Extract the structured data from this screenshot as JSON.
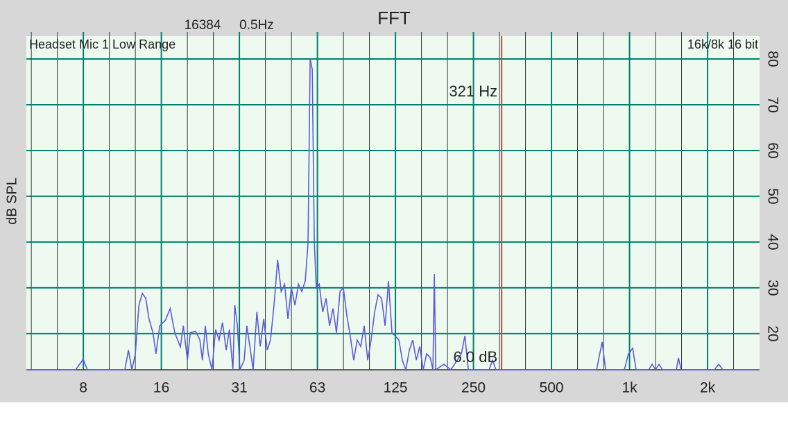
{
  "chart_data": {
    "type": "line",
    "title": "FFT",
    "subtitle_fft_size": "16384",
    "subtitle_resolution": "0.5Hz",
    "source_label": "Headset Mic 1 Low Range",
    "format_label": "16k/8k 16 bit",
    "y_label": "dB SPL",
    "x_scale": "log",
    "xlim": [
      4.71,
      3174
    ],
    "xticks": [
      {
        "value": 7.8125,
        "label": "8"
      },
      {
        "value": 15.625,
        "label": "16"
      },
      {
        "value": 31.25,
        "label": "31"
      },
      {
        "value": 62.5,
        "label": "63"
      },
      125,
      250,
      500,
      {
        "value": 1000,
        "label": "1k"
      },
      {
        "value": 2000,
        "label": "2k"
      }
    ],
    "xminor": 3,
    "ylim": [
      12.1,
      85
    ],
    "yticks": [
      20,
      30,
      40,
      50,
      60,
      70,
      80
    ],
    "grid": true,
    "color": "#5a5ae0",
    "cursor": {
      "x": 321,
      "color": "#d04040",
      "freq_label": "321 Hz",
      "level_label": "6.0 dB",
      "label_color": "#6a6af0"
    },
    "x": [
      4.71,
      7.3,
      7.6,
      7.8,
      8.1,
      11.3,
      11.66,
      12.03,
      12.4,
      12.8,
      13.2,
      13.6,
      14.0,
      14.5,
      14.9,
      15.4,
      16.2,
      16.9,
      17.6,
      18.5,
      19.0,
      19.7,
      20.2,
      21.2,
      22.0,
      22.5,
      23.1,
      23.7,
      24.5,
      25.3,
      26.1,
      26.9,
      27.8,
      28.6,
      29.5,
      30.0,
      30.7,
      31.4,
      32.6,
      33.4,
      34.3,
      35.3,
      36.5,
      37.6,
      38.8,
      40.0,
      41.2,
      42.5,
      43.9,
      45.3,
      46.7,
      48.1,
      49.6,
      51.2,
      52.8,
      54.4,
      56.1,
      57.5,
      58.6,
      59.7,
      60.8,
      61.9,
      63.5,
      65.5,
      67.5,
      69.6,
      71.8,
      74.0,
      76.4,
      78.7,
      81.2,
      83.7,
      86.3,
      89.0,
      91.8,
      94.7,
      97.7,
      100.7,
      103.9,
      107.1,
      110.5,
      114.0,
      117.5,
      121.2,
      128.9,
      132.9,
      137.1,
      141.4,
      145.8,
      150.4,
      155.1,
      159.9,
      164.9,
      170.1,
      174.4,
      176.6,
      178.8,
      192.3,
      204.6,
      224.6,
      231.6,
      238.8,
      287.2,
      296.1,
      305.3,
      746.5,
      784.0,
      808.6,
      954.9,
      990.9,
      1028,
      1060,
      1184,
      1222,
      1260,
      1299,
      1340,
      1516,
      1544,
      1582,
      2126,
      2206,
      2291,
      3174
    ],
    "values": [
      12.1,
      12.1,
      13.5,
      14.4,
      12.1,
      12.1,
      16.4,
      12.1,
      15.6,
      26.2,
      28.8,
      27.7,
      23.2,
      20.2,
      15.6,
      21.7,
      22.9,
      25.5,
      20.2,
      17.1,
      21.7,
      14.2,
      20.2,
      20.5,
      18.6,
      14.2,
      21.7,
      15.6,
      12.1,
      20.9,
      18.6,
      22.4,
      16.4,
      20.9,
      12.1,
      26.2,
      21.7,
      12.1,
      14.2,
      21.7,
      17.2,
      12.1,
      24.7,
      17.2,
      23.2,
      16.4,
      18.6,
      26.2,
      36.1,
      29.2,
      30.8,
      23.2,
      30.0,
      26.2,
      30.8,
      29.2,
      31.5,
      39.8,
      80,
      77.7,
      39.8,
      30.0,
      30.8,
      24.7,
      27.7,
      21.7,
      25.5,
      20.2,
      29.2,
      30.0,
      23.9,
      19.4,
      14.2,
      18.6,
      17.2,
      21.7,
      14.2,
      18.6,
      24.7,
      28.5,
      27.7,
      21.7,
      31.5,
      20.2,
      18.6,
      14.2,
      12.1,
      16.4,
      18.6,
      14.2,
      17.2,
      12.1,
      15.6,
      14.8,
      12.1,
      33.0,
      12.1,
      13.3,
      12.1,
      15.6,
      19.5,
      12.1,
      12.1,
      14.2,
      12.1,
      12.1,
      18.2,
      12.1,
      12.1,
      15.6,
      16.8,
      12.1,
      12.1,
      13.3,
      12.1,
      13.3,
      12.1,
      12.1,
      14.7,
      12.1,
      12.1,
      13.3,
      12.1,
      12.1
    ]
  }
}
